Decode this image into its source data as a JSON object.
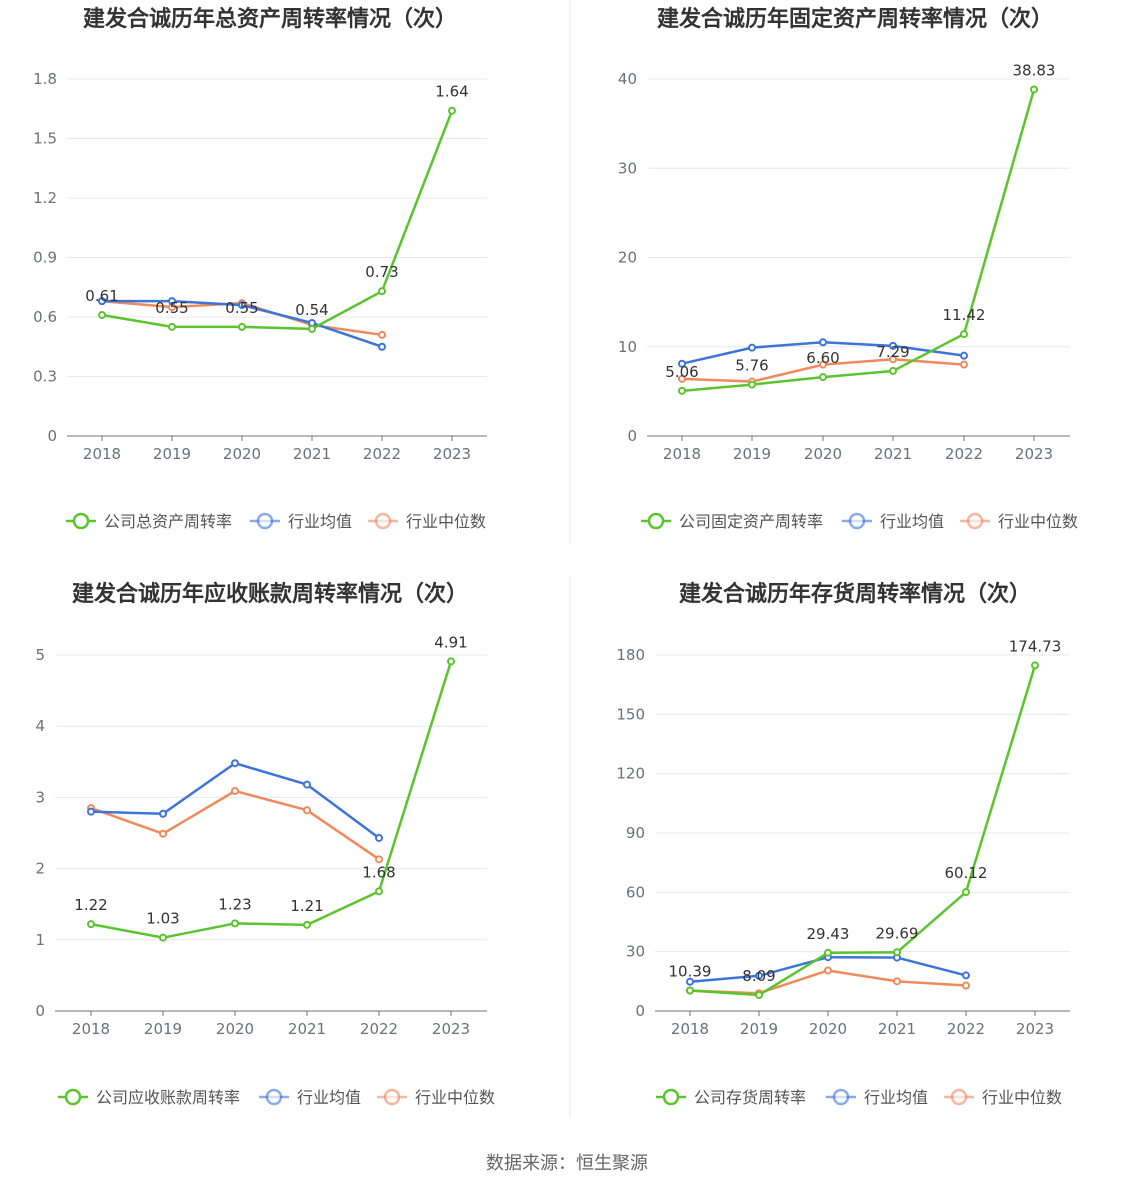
{
  "source": "数据来源：恒生聚源",
  "colors": {
    "company": "#5ac42c",
    "industry_avg": "#3c74d9",
    "industry_median": "#f08a5d",
    "grid": "#e6e8f0",
    "axis": "#6e7079",
    "divider": "#e8e8e8"
  },
  "chart_data": [
    {
      "type": "line",
      "title": "建发合诚历年总资产周转率情况（次）",
      "x": [
        "2018",
        "2019",
        "2020",
        "2021",
        "2022",
        "2023"
      ],
      "y_ticks": [
        "0",
        "0.3",
        "0.6",
        "0.9",
        "1.2",
        "1.5",
        "1.8"
      ],
      "ylim": [
        0,
        1.8
      ],
      "legend_position": "bottom",
      "series": [
        {
          "name": "公司总资产周转率",
          "values": [
            0.61,
            0.55,
            0.55,
            0.54,
            0.73,
            1.64
          ],
          "labels": [
            "0.61",
            "0.55",
            "0.55",
            "0.54",
            "0.73",
            "1.64"
          ]
        },
        {
          "name": "行业均值",
          "values": [
            0.68,
            0.68,
            0.66,
            0.57,
            0.45,
            null
          ]
        },
        {
          "name": "行业中位数",
          "values": [
            0.68,
            0.65,
            0.67,
            0.56,
            0.51,
            null
          ]
        }
      ]
    },
    {
      "type": "line",
      "title": "建发合诚历年固定资产周转率情况（次）",
      "x": [
        "2018",
        "2019",
        "2020",
        "2021",
        "2022",
        "2023"
      ],
      "y_ticks": [
        "0",
        "10",
        "20",
        "30",
        "40"
      ],
      "ylim": [
        0,
        40
      ],
      "legend_position": "bottom",
      "series": [
        {
          "name": "公司固定资产周转率",
          "values": [
            5.06,
            5.76,
            6.6,
            7.29,
            11.42,
            38.83
          ],
          "labels": [
            "5.06",
            "5.76",
            "6.60",
            "7.29",
            "11.42",
            "38.83"
          ]
        },
        {
          "name": "行业均值",
          "values": [
            8.1,
            9.9,
            10.5,
            10.1,
            9.0,
            null
          ]
        },
        {
          "name": "行业中位数",
          "values": [
            6.4,
            6.1,
            8.0,
            8.6,
            8.0,
            null
          ]
        }
      ]
    },
    {
      "type": "line",
      "title": "建发合诚历年应收账款周转率情况（次）",
      "x": [
        "2018",
        "2019",
        "2020",
        "2021",
        "2022",
        "2023"
      ],
      "y_ticks": [
        "0",
        "1",
        "2",
        "3",
        "4",
        "5"
      ],
      "ylim": [
        0,
        5
      ],
      "legend_position": "bottom",
      "series": [
        {
          "name": "公司应收账款周转率",
          "values": [
            1.22,
            1.03,
            1.23,
            1.21,
            1.68,
            4.91
          ],
          "labels": [
            "1.22",
            "1.03",
            "1.23",
            "1.21",
            "1.68",
            "4.91"
          ]
        },
        {
          "name": "行业均值",
          "values": [
            2.8,
            2.77,
            3.48,
            3.18,
            2.43,
            null
          ]
        },
        {
          "name": "行业中位数",
          "values": [
            2.85,
            2.49,
            3.09,
            2.82,
            2.13,
            null
          ]
        }
      ]
    },
    {
      "type": "line",
      "title": "建发合诚历年存货周转率情况（次）",
      "x": [
        "2018",
        "2019",
        "2020",
        "2021",
        "2022",
        "2023"
      ],
      "y_ticks": [
        "0",
        "30",
        "60",
        "90",
        "120",
        "150",
        "180"
      ],
      "ylim": [
        0,
        180
      ],
      "legend_position": "bottom",
      "series": [
        {
          "name": "公司存货周转率",
          "values": [
            10.39,
            8.09,
            29.43,
            29.69,
            60.12,
            174.73
          ],
          "labels": [
            "10.39",
            "8.09",
            "29.43",
            "29.69",
            "60.12",
            "174.73"
          ]
        },
        {
          "name": "行业均值",
          "values": [
            14.8,
            17.8,
            27.2,
            27.0,
            18.0,
            null
          ]
        },
        {
          "name": "行业中位数",
          "values": [
            10.3,
            9.0,
            20.5,
            15.0,
            12.9,
            null
          ]
        }
      ]
    }
  ]
}
